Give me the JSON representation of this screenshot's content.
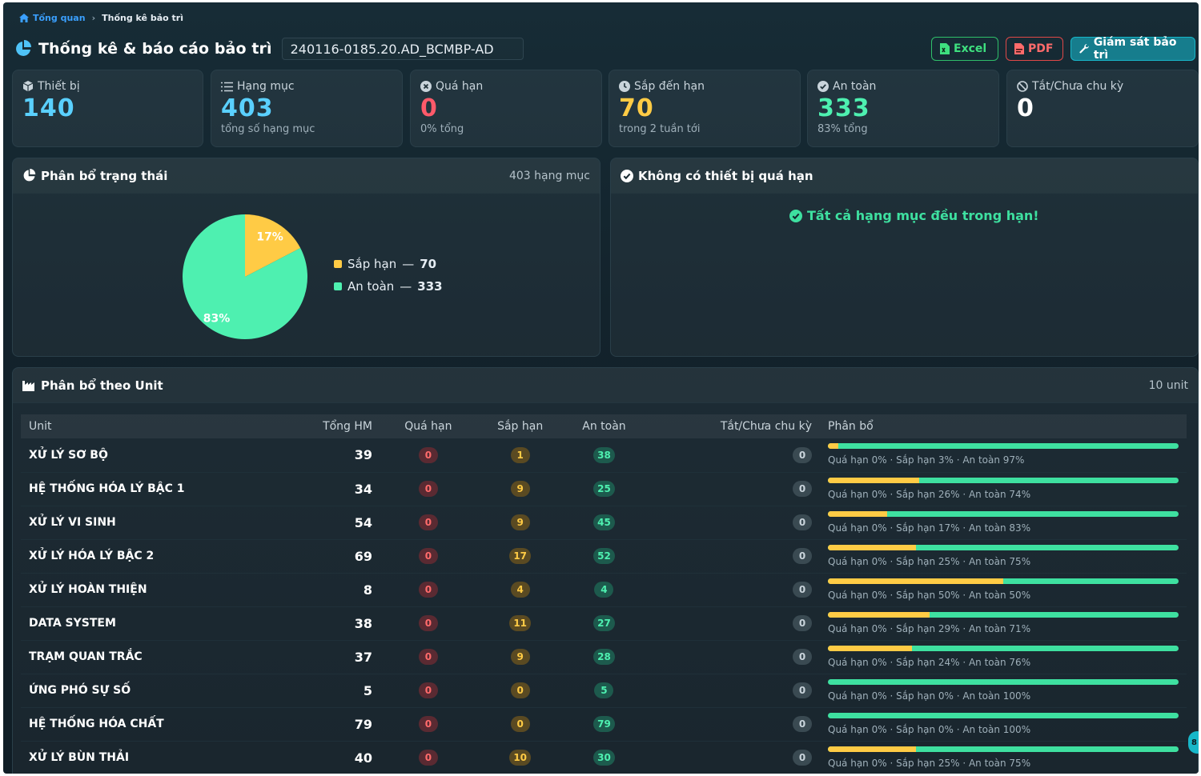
{
  "breadcrumb": {
    "home": "Tổng quan",
    "current": "Thống kê bảo trì"
  },
  "page": {
    "title": "Thống kê & báo cáo bảo trì",
    "code": "240116-0185.20.AD_BCMBP-AD"
  },
  "actions": {
    "excel": "Excel",
    "pdf": "PDF",
    "supervise": "Giám sát bảo trì"
  },
  "cards": [
    {
      "label": "Thiết bị",
      "value": "140",
      "sub": "",
      "color": "#5ad0ff"
    },
    {
      "label": "Hạng mục",
      "value": "403",
      "sub": "tổng số hạng mục",
      "color": "#5ad0ff"
    },
    {
      "label": "Quá hạn",
      "value": "0",
      "sub": "0% tổng",
      "color": "#ff5a6a"
    },
    {
      "label": "Sắp đến hạn",
      "value": "70",
      "sub": "trong 2 tuần tới",
      "color": "#ffcb45"
    },
    {
      "label": "An toàn",
      "value": "333",
      "sub": "83% tổng",
      "color": "#4ef0b0"
    },
    {
      "label": "Tắt/Chưa chu kỳ",
      "value": "0",
      "sub": "",
      "color": "#ffffff"
    }
  ],
  "status_panel": {
    "title": "Phân bổ trạng thái",
    "count": "403 hạng mục",
    "legend": [
      {
        "label": "Sắp hạn",
        "value": "70",
        "color": "#ffcb45"
      },
      {
        "label": "An toàn",
        "value": "333",
        "color": "#4ef0b0"
      }
    ]
  },
  "chart_data": {
    "type": "pie",
    "slices": [
      {
        "name": "Sắp hạn",
        "value": 70,
        "label": "17%",
        "color": "#ffcb45"
      },
      {
        "name": "An toàn",
        "value": 333,
        "label": "83%",
        "color": "#4ef0b0"
      }
    ]
  },
  "overdue_panel": {
    "title": "Không có thiết bị quá hạn",
    "message": "Tất cả hạng mục đều trong hạn!"
  },
  "unit_panel": {
    "title": "Phân bổ theo Unit",
    "count": "10 unit",
    "columns": [
      "Unit",
      "Tổng HM",
      "Quá hạn",
      "Sắp hạn",
      "An toàn",
      "Tắt/Chưa chu kỳ",
      "Phân bổ"
    ],
    "rows": [
      {
        "unit": "XỬ LÝ SƠ BỘ",
        "total": "39",
        "overdue": "0",
        "soon": "1",
        "safe": "38",
        "off": "0",
        "pct_overdue": 0,
        "pct_soon": 3,
        "pct_safe": 97,
        "dist": "Quá hạn 0% · Sắp hạn 3% · An toàn 97%"
      },
      {
        "unit": "HỆ THỐNG HÓA LÝ BẬC 1",
        "total": "34",
        "overdue": "0",
        "soon": "9",
        "safe": "25",
        "off": "0",
        "pct_overdue": 0,
        "pct_soon": 26,
        "pct_safe": 74,
        "dist": "Quá hạn 0% · Sắp hạn 26% · An toàn 74%"
      },
      {
        "unit": "XỬ LÝ VI SINH",
        "total": "54",
        "overdue": "0",
        "soon": "9",
        "safe": "45",
        "off": "0",
        "pct_overdue": 0,
        "pct_soon": 17,
        "pct_safe": 83,
        "dist": "Quá hạn 0% · Sắp hạn 17% · An toàn 83%"
      },
      {
        "unit": "XỬ LÝ HÓA LÝ BẬC 2",
        "total": "69",
        "overdue": "0",
        "soon": "17",
        "safe": "52",
        "off": "0",
        "pct_overdue": 0,
        "pct_soon": 25,
        "pct_safe": 75,
        "dist": "Quá hạn 0% · Sắp hạn 25% · An toàn 75%"
      },
      {
        "unit": "XỬ LÝ HOÀN THIỆN",
        "total": "8",
        "overdue": "0",
        "soon": "4",
        "safe": "4",
        "off": "0",
        "pct_overdue": 0,
        "pct_soon": 50,
        "pct_safe": 50,
        "dist": "Quá hạn 0% · Sắp hạn 50% · An toàn 50%"
      },
      {
        "unit": "DATA SYSTEM",
        "total": "38",
        "overdue": "0",
        "soon": "11",
        "safe": "27",
        "off": "0",
        "pct_overdue": 0,
        "pct_soon": 29,
        "pct_safe": 71,
        "dist": "Quá hạn 0% · Sắp hạn 29% · An toàn 71%"
      },
      {
        "unit": "TRẠM QUAN TRẮC",
        "total": "37",
        "overdue": "0",
        "soon": "9",
        "safe": "28",
        "off": "0",
        "pct_overdue": 0,
        "pct_soon": 24,
        "pct_safe": 76,
        "dist": "Quá hạn 0% · Sắp hạn 24% · An toàn 76%"
      },
      {
        "unit": "ỨNG PHÓ SỰ SỐ",
        "total": "5",
        "overdue": "0",
        "soon": "0",
        "safe": "5",
        "off": "0",
        "pct_overdue": 0,
        "pct_soon": 0,
        "pct_safe": 100,
        "dist": "Quá hạn 0% · Sắp hạn 0% · An toàn 100%"
      },
      {
        "unit": "HỆ THỐNG HÓA CHẤT",
        "total": "79",
        "overdue": "0",
        "soon": "0",
        "safe": "79",
        "off": "0",
        "pct_overdue": 0,
        "pct_soon": 0,
        "pct_safe": 100,
        "dist": "Quá hạn 0% · Sắp hạn 0% · An toàn 100%"
      },
      {
        "unit": "XỬ LÝ BÙN THẢI",
        "total": "40",
        "overdue": "0",
        "soon": "10",
        "safe": "30",
        "off": "0",
        "pct_overdue": 0,
        "pct_soon": 25,
        "pct_safe": 75,
        "dist": "Quá hạn 0% · Sắp hạn 25% · An toàn 75%"
      }
    ]
  },
  "edge_badge": "8"
}
